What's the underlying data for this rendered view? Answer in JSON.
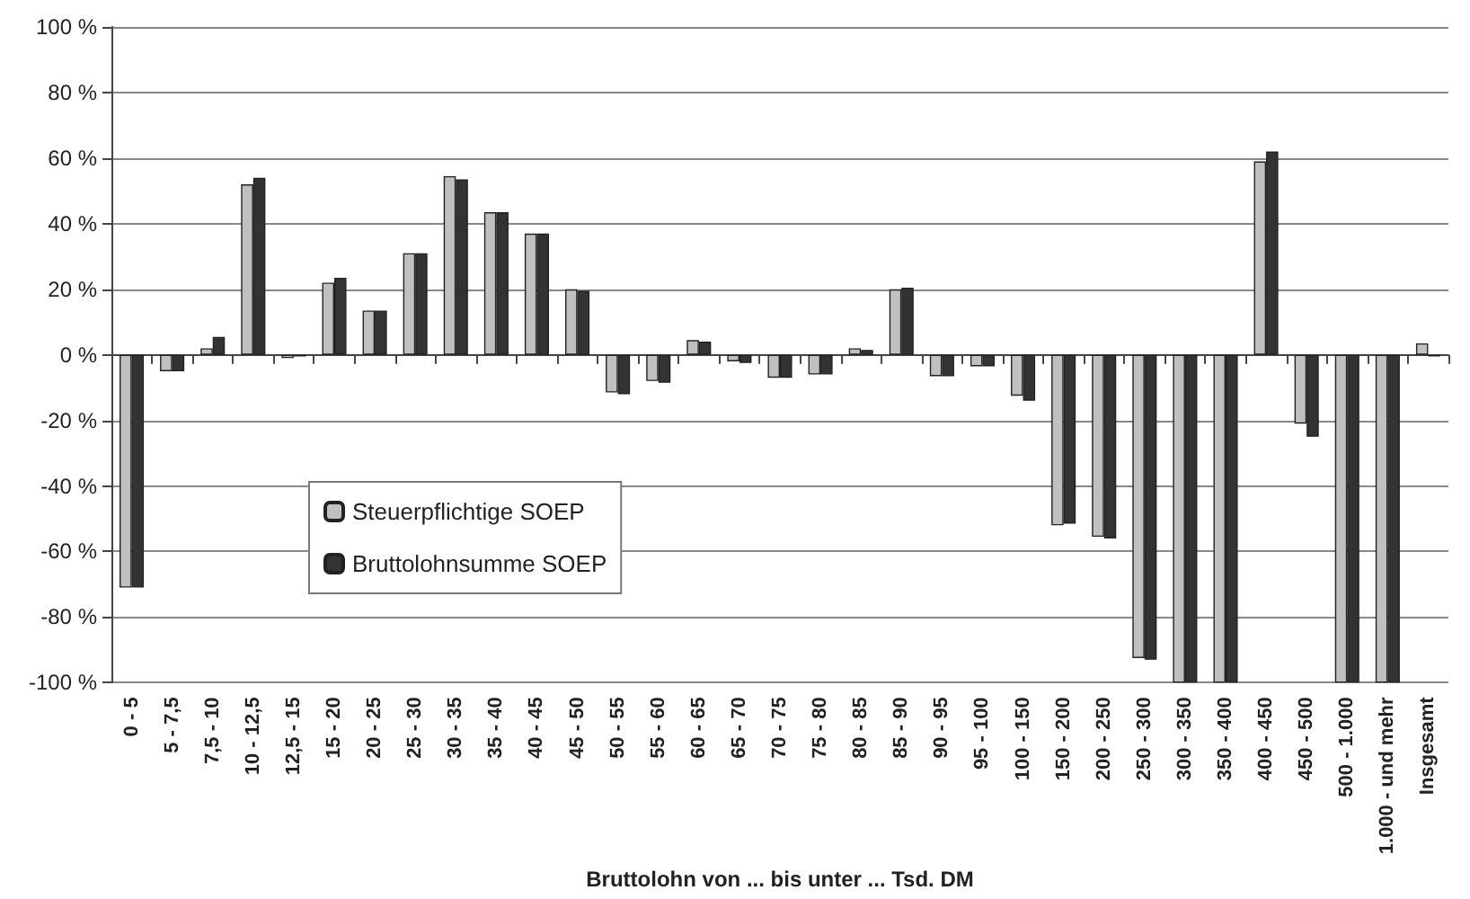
{
  "chart_data": {
    "type": "bar",
    "xlabel": "Bruttolohn von ... bis unter ... Tsd. DM",
    "categories": [
      "0 - 5",
      "5 - 7,5",
      "7,5 - 10",
      "10 - 12,5",
      "12,5 - 15",
      "15 - 20",
      "20 - 25",
      "25 - 30",
      "30 - 35",
      "35 - 40",
      "40 - 45",
      "45 - 50",
      "50 - 55",
      "55 - 60",
      "60 - 65",
      "65 - 70",
      "70 - 75",
      "75 - 80",
      "80 - 85",
      "85 - 90",
      "90 - 95",
      "95 - 100",
      "100 - 150",
      "150 - 200",
      "200 - 250",
      "250 - 300",
      "300 - 350",
      "350 - 400",
      "400 - 450",
      "450 - 500",
      "500 - 1.000",
      "1.000 - und mehr",
      "Insgesamt"
    ],
    "series": [
      {
        "name": "Steuerpflichtige SOEP",
        "color": "#c0c0c0",
        "values": [
          -71,
          -5,
          2,
          52,
          -1,
          22,
          13.5,
          31,
          54.5,
          43.5,
          37,
          20,
          -11.5,
          -8,
          4.5,
          -2,
          -7,
          -6,
          2,
          20,
          -6.5,
          -3.5,
          -12.5,
          -52,
          -55.5,
          -92.5,
          -100,
          -100,
          59,
          -21,
          -100,
          -100,
          3.5
        ]
      },
      {
        "name": "Bruttolohnsumme SOEP",
        "color": "#333333",
        "values": [
          -71,
          -5,
          5.5,
          54,
          -0.5,
          23.5,
          13.5,
          31,
          53.5,
          43.5,
          37,
          19.5,
          -12,
          -8.5,
          4,
          -2.5,
          -7,
          -6,
          1.5,
          20.5,
          -6.5,
          -3.5,
          -14,
          -51.5,
          -56,
          -93,
          -100,
          -100,
          62,
          -25,
          -100,
          -100,
          -0.5
        ]
      }
    ],
    "ylim": [
      -100,
      100
    ],
    "yticks": [
      {
        "value": -100,
        "label": "-100 %"
      },
      {
        "value": -80,
        "label": "-80 %"
      },
      {
        "value": -60,
        "label": "-60 %"
      },
      {
        "value": -40,
        "label": "-40 %"
      },
      {
        "value": -20,
        "label": "-20 %"
      },
      {
        "value": 0,
        "label": "0 %"
      },
      {
        "value": 20,
        "label": "20 %"
      },
      {
        "value": 40,
        "label": "40 %"
      },
      {
        "value": 60,
        "label": "60 %"
      },
      {
        "value": 80,
        "label": "80 %"
      },
      {
        "value": 100,
        "label": "100 %"
      }
    ],
    "grid": "y",
    "legend": "left"
  }
}
